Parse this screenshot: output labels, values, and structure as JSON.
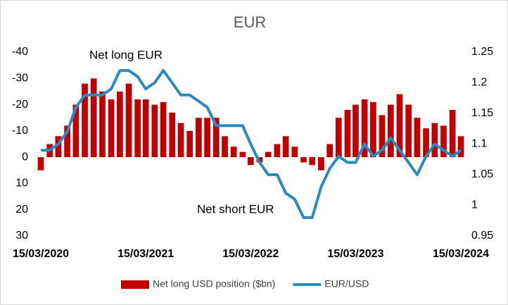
{
  "chart_data": {
    "type": "combo",
    "title": "EUR",
    "x": [
      "15/03/2020",
      "15/04/2020",
      "15/05/2020",
      "15/06/2020",
      "15/07/2020",
      "15/08/2020",
      "15/09/2020",
      "15/10/2020",
      "15/11/2020",
      "15/12/2020",
      "15/01/2021",
      "15/02/2021",
      "15/03/2021",
      "15/04/2021",
      "15/05/2021",
      "15/06/2021",
      "15/07/2021",
      "15/08/2021",
      "15/09/2021",
      "15/10/2021",
      "15/11/2021",
      "15/12/2021",
      "15/01/2022",
      "15/02/2022",
      "15/03/2022",
      "15/04/2022",
      "15/05/2022",
      "15/06/2022",
      "15/07/2022",
      "15/08/2022",
      "15/09/2022",
      "15/10/2022",
      "15/11/2022",
      "15/12/2022",
      "15/01/2023",
      "15/02/2023",
      "15/03/2023",
      "15/04/2023",
      "15/05/2023",
      "15/06/2023",
      "15/07/2023",
      "15/08/2023",
      "15/09/2023",
      "15/10/2023",
      "15/11/2023",
      "15/12/2023",
      "15/01/2024",
      "15/02/2024",
      "15/03/2024"
    ],
    "xlim": [
      "15/03/2020",
      "15/03/2024"
    ],
    "xticks": [
      "15/03/2020",
      "15/03/2021",
      "15/03/2022",
      "15/03/2023",
      "15/03/2024"
    ],
    "series": [
      {
        "name": "Net long USD position ($bn)",
        "type": "bar",
        "color": "#c00000",
        "values": [
          5,
          -5,
          -8,
          -12,
          -20,
          -28,
          -30,
          -25,
          -22,
          -25,
          -28,
          -22,
          -22,
          -20,
          -21,
          -17,
          -13,
          -10,
          -15,
          -15,
          -15,
          -8,
          -4,
          -2,
          3,
          2,
          -2,
          -5,
          -8,
          -4,
          2,
          3,
          5,
          -5,
          -15,
          -18,
          -20,
          -22,
          -21,
          -16,
          -20,
          -24,
          -20,
          -15,
          -11,
          -13,
          -12,
          -18,
          -8
        ]
      },
      {
        "name": "EUR/USD",
        "type": "line",
        "axis": "y2",
        "color": "#2a8bbf",
        "values": [
          1.09,
          1.09,
          1.1,
          1.12,
          1.16,
          1.18,
          1.18,
          1.18,
          1.19,
          1.22,
          1.22,
          1.21,
          1.19,
          1.2,
          1.22,
          1.2,
          1.18,
          1.18,
          1.17,
          1.16,
          1.13,
          1.13,
          1.13,
          1.13,
          1.1,
          1.07,
          1.05,
          1.05,
          1.02,
          1.01,
          0.98,
          0.98,
          1.03,
          1.06,
          1.08,
          1.07,
          1.07,
          1.1,
          1.08,
          1.09,
          1.11,
          1.09,
          1.07,
          1.05,
          1.08,
          1.1,
          1.09,
          1.08,
          1.09
        ]
      }
    ],
    "ylim": [
      -40,
      30
    ],
    "y_reversed": true,
    "yticks": [
      -40,
      -30,
      -20,
      -10,
      0,
      10,
      20,
      30
    ],
    "y2lim": [
      0.95,
      1.25
    ],
    "y2ticks": [
      0.95,
      1,
      1.05,
      1.1,
      1.15,
      1.2,
      1.25
    ],
    "annotations": [
      {
        "text": "Net long EUR"
      },
      {
        "text": "Net short EUR"
      }
    ],
    "legend": "bottom"
  }
}
